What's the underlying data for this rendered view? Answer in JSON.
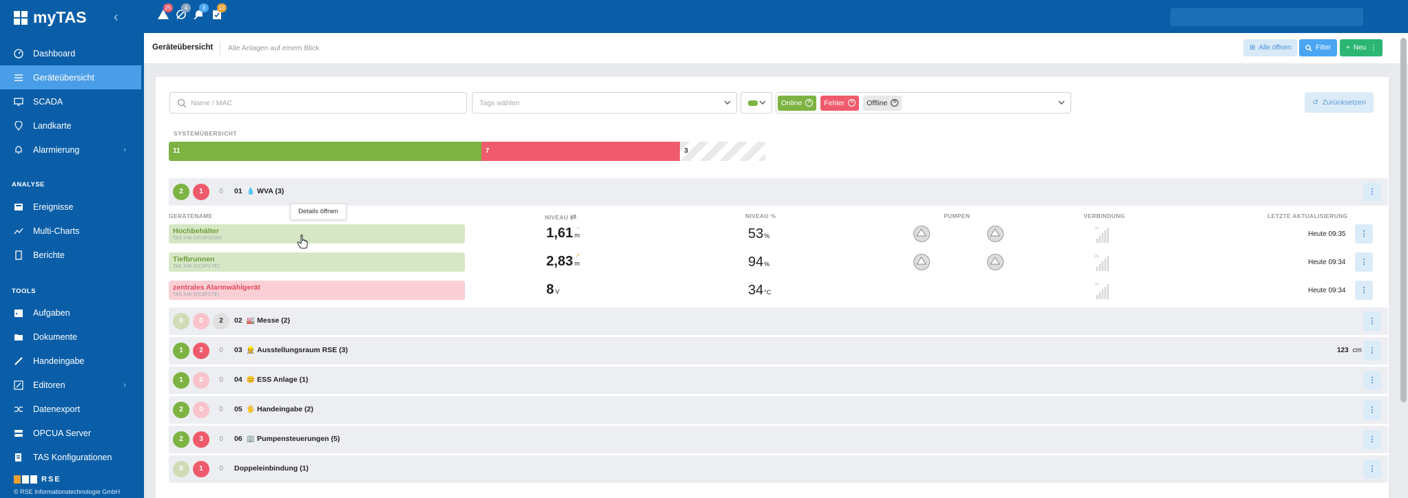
{
  "app": {
    "name": "myTAS",
    "copyright": "© RSE Informationstechnologie GmbH",
    "footer_logo": "RSE"
  },
  "sidebar": {
    "items": [
      {
        "label": "Dashboard",
        "icon": "dashboard-icon"
      },
      {
        "label": "Geräteübersicht",
        "icon": "list-icon",
        "active": true
      },
      {
        "label": "SCADA",
        "icon": "monitor-icon"
      },
      {
        "label": "Landkarte",
        "icon": "map-pin-icon"
      },
      {
        "label": "Alarmierung",
        "icon": "bell-icon",
        "chevron": "›"
      }
    ],
    "section_analyse": "ANALYSE",
    "analyse_items": [
      {
        "label": "Ereignisse",
        "icon": "events-icon"
      },
      {
        "label": "Multi-Charts",
        "icon": "chart-icon"
      },
      {
        "label": "Berichte",
        "icon": "report-icon"
      }
    ],
    "section_tools": "TOOLS",
    "tools_items": [
      {
        "label": "Aufgaben",
        "icon": "calendar-icon"
      },
      {
        "label": "Dokumente",
        "icon": "folder-icon"
      },
      {
        "label": "Handeingabe",
        "icon": "pencil-icon"
      },
      {
        "label": "Editoren",
        "icon": "edit-icon",
        "chevron": "›"
      },
      {
        "label": "Datenexport",
        "icon": "shuffle-icon"
      },
      {
        "label": "OPCUA Server",
        "icon": "server-icon"
      },
      {
        "label": "TAS Konfigurationen",
        "icon": "config-icon"
      }
    ]
  },
  "topbar": {
    "notifications": [
      {
        "icon": "alarm-icon",
        "count": "25",
        "color": "#ef5b6c"
      },
      {
        "icon": "offline-icon",
        "count": "4",
        "color": "#8aa4bf"
      },
      {
        "icon": "muted-icon",
        "count": "3",
        "color": "#4aa6f2"
      },
      {
        "icon": "task-icon",
        "count": "13",
        "color": "#f0a030"
      }
    ]
  },
  "header": {
    "title": "Geräteübersicht",
    "subtitle": "Alle Anlagen auf einem Blick",
    "open_all": "Alle öffnen",
    "filter": "Filter",
    "new": "Neu"
  },
  "filters": {
    "search_placeholder": "Name / MAC",
    "tags_placeholder": "Tags wählen",
    "status_pills": [
      {
        "label": "Online",
        "bg": "#7cb342",
        "fg": "#ffffff"
      },
      {
        "label": "Fehler",
        "bg": "#ef5b6c",
        "fg": "#ffffff"
      },
      {
        "label": "Offline",
        "bg": "#e8e8e8",
        "fg": "#333333"
      }
    ],
    "reset": "Zurücksetzen"
  },
  "system": {
    "label": "SYSTEMÜBERSICHT",
    "online": 11,
    "error": 7,
    "offline": 3,
    "online_label": "11",
    "error_label": "7",
    "offline_label": "3"
  },
  "table_headers": {
    "name": "GERÄTENAME",
    "level": "NIVEAU",
    "level_pct": "NIVEAU %",
    "pumps": "PUMPEN",
    "connection": "VERBINDUNG",
    "updated": "LETZTE AKTUALISIERUNG"
  },
  "tooltip": "Details öffnen",
  "groups": [
    {
      "num": "01",
      "icon": "💧",
      "name": "WVA (3)",
      "green": "2",
      "red": "1",
      "grey": "0",
      "dim_g": false,
      "dim_r": false,
      "hl_n": false
    },
    {
      "num": "02",
      "icon": "🏭",
      "name": "Messe (2)",
      "green": "0",
      "red": "0",
      "grey": "2",
      "dim_g": true,
      "dim_r": true,
      "hl_n": true
    },
    {
      "num": "03",
      "icon": "👷",
      "name": "Ausstellungsraum RSE (3)",
      "green": "1",
      "red": "2",
      "grey": "0",
      "dim_g": false,
      "dim_r": false,
      "hl_n": false,
      "extra_val": "123",
      "extra_unit": "cm"
    },
    {
      "num": "04",
      "icon": "😊",
      "name": "ESS Anlage (1)",
      "green": "1",
      "red": "0",
      "grey": "0",
      "dim_g": false,
      "dim_r": true,
      "hl_n": false
    },
    {
      "num": "05",
      "icon": "🖐",
      "name": "Handeingabe (2)",
      "green": "2",
      "red": "0",
      "grey": "0",
      "dim_g": false,
      "dim_r": true,
      "hl_n": false
    },
    {
      "num": "06",
      "icon": "🏢",
      "name": "Pumpensteuerungen (5)",
      "green": "2",
      "red": "3",
      "grey": "0",
      "dim_g": false,
      "dim_r": false,
      "hl_n": false
    },
    {
      "num": "",
      "icon": "",
      "name": "Doppeleinbindung (1)",
      "green": "0",
      "red": "1",
      "grey": "0",
      "dim_g": true,
      "dim_r": false,
      "hl_n": false
    }
  ],
  "devices": [
    {
      "name": "Hochbehälter",
      "sub": "TAS X40 (VCSP/GSM)",
      "status": "ok",
      "level": "1,61",
      "level_unit": "m",
      "trend": "→",
      "pct": "53",
      "pct_unit": "%",
      "pumps": 2,
      "updated": "Heute 09:35"
    },
    {
      "name": "Tiefbrunnen",
      "sub": "TAS X40 (VCSP/LTE)",
      "status": "ok",
      "level": "2,83",
      "level_unit": "m",
      "trend": "↗",
      "pct": "94",
      "pct_unit": "%",
      "pumps": 2,
      "updated": "Heute 09:34"
    },
    {
      "name": "zentrales Alarmwählgerät",
      "sub": "TAS X40 (VCSP/LTE)",
      "status": "err",
      "level": "8",
      "level_unit": "V",
      "trend": "",
      "pct": "34",
      "pct_unit": "°C",
      "pumps": 0,
      "updated": "Heute 09:34"
    }
  ]
}
